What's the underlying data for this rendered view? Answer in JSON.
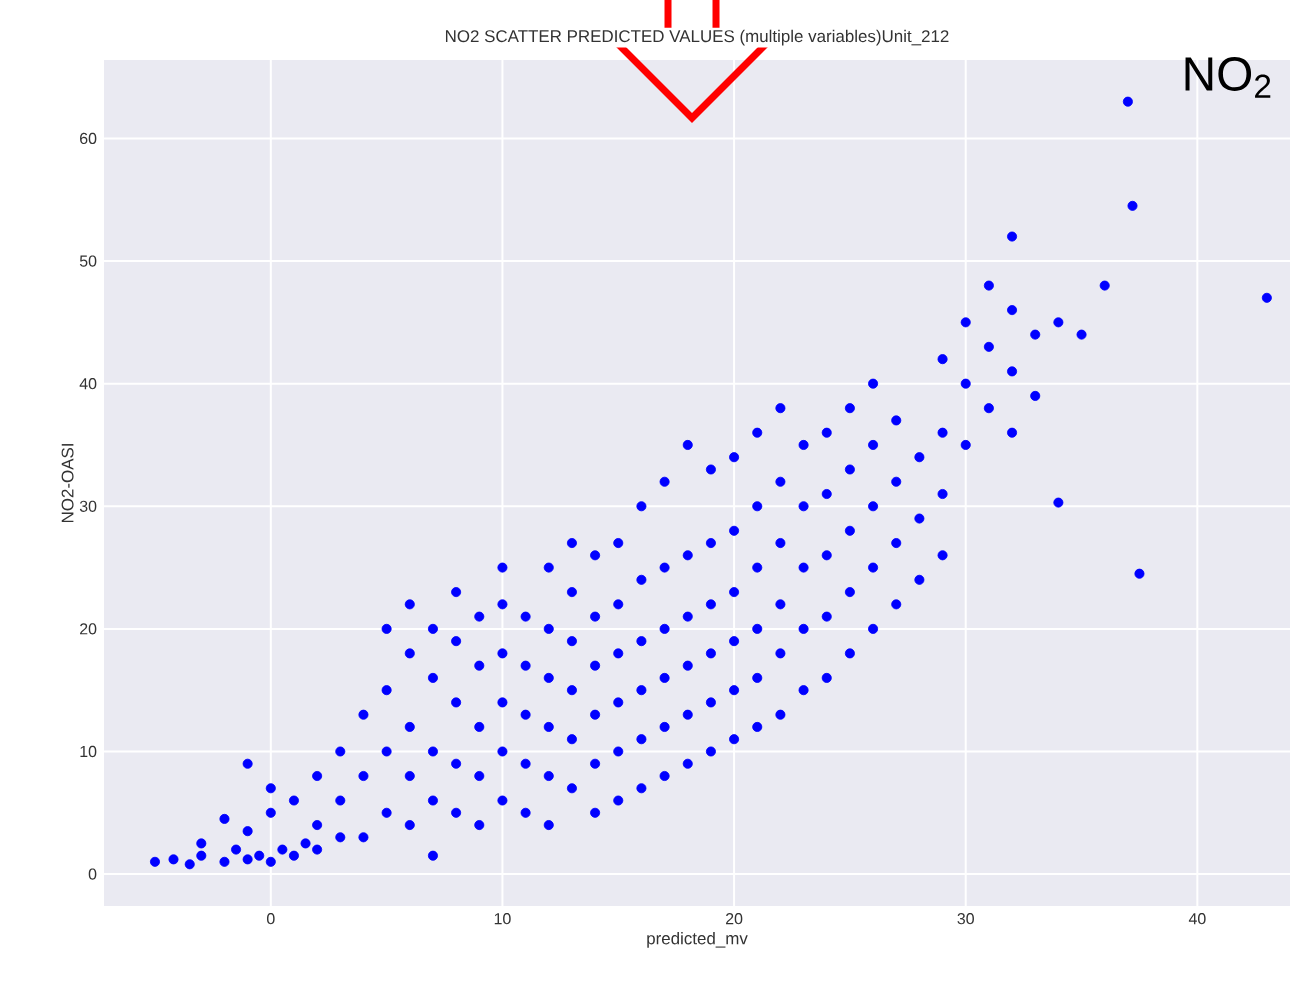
{
  "chart_data": {
    "type": "scatter",
    "title": "NO2 SCATTER PREDICTED VALUES (multiple variables)Unit_212",
    "xlabel": "predicted_mv",
    "ylabel": "NO2-OASI",
    "annotations": [
      "NO$_{2}$"
    ],
    "color": "#0000ff",
    "marker": "circle",
    "grid": true,
    "xlim": [
      -7.2,
      44
    ],
    "ylim": [
      -2.6,
      66.4
    ],
    "xticks": [
      0,
      10,
      20,
      30,
      40
    ],
    "yticks": [
      0,
      10,
      20,
      30,
      40,
      50,
      60
    ],
    "x": [
      -5,
      -4.2,
      -3.5,
      -3,
      -2,
      -1.5,
      -1,
      -0.5,
      0,
      0.5,
      1,
      1.5,
      2,
      3,
      -2,
      -1,
      -3,
      -1,
      0,
      0,
      1,
      2,
      2,
      3,
      3,
      4,
      4,
      4,
      5,
      5,
      5,
      5,
      6,
      6,
      6,
      6,
      6,
      7,
      7,
      7,
      7,
      7,
      8,
      8,
      8,
      8,
      8,
      9,
      9,
      9,
      9,
      9,
      10,
      10,
      10,
      10,
      10,
      10,
      11,
      11,
      11,
      11,
      11,
      12,
      12,
      12,
      12,
      12,
      12,
      13,
      13,
      13,
      13,
      13,
      13,
      14,
      14,
      14,
      14,
      14,
      14,
      15,
      15,
      15,
      15,
      15,
      15,
      16,
      16,
      16,
      16,
      16,
      16,
      17,
      17,
      17,
      17,
      17,
      17,
      18,
      18,
      18,
      18,
      18,
      18,
      19,
      19,
      19,
      19,
      19,
      19,
      20,
      20,
      20,
      20,
      20,
      20,
      21,
      21,
      21,
      21,
      21,
      21,
      22,
      22,
      22,
      22,
      22,
      22,
      23,
      23,
      23,
      23,
      23,
      24,
      24,
      24,
      24,
      24,
      25,
      25,
      25,
      25,
      25,
      26,
      26,
      26,
      26,
      26,
      27,
      27,
      27,
      27,
      28,
      28,
      28,
      29,
      29,
      29,
      29,
      30,
      30,
      30,
      31,
      31,
      31,
      32,
      32,
      32,
      32,
      33,
      33,
      34,
      34,
      35,
      36,
      37,
      37.2,
      37.5,
      43
    ],
    "values": [
      1,
      1.2,
      0.8,
      1.5,
      1,
      2,
      1.2,
      1.5,
      1,
      2,
      1.5,
      2.5,
      2,
      3,
      4.5,
      3.5,
      2.5,
      9,
      7,
      5,
      6,
      4,
      8,
      6,
      10,
      3,
      8,
      13,
      5,
      10,
      15,
      20,
      4,
      8,
      12,
      18,
      22,
      1.5,
      6,
      10,
      16,
      20,
      5,
      9,
      14,
      19,
      23,
      4,
      8,
      12,
      17,
      21,
      6,
      10,
      14,
      18,
      22,
      25,
      5,
      9,
      13,
      17,
      21,
      4,
      8,
      12,
      16,
      20,
      25,
      7,
      11,
      15,
      19,
      23,
      27,
      5,
      9,
      13,
      17,
      21,
      26,
      6,
      10,
      14,
      18,
      22,
      27,
      7,
      11,
      15,
      19,
      24,
      30,
      8,
      12,
      16,
      20,
      25,
      32,
      9,
      13,
      17,
      21,
      26,
      35,
      10,
      14,
      18,
      22,
      27,
      33,
      11,
      15,
      19,
      23,
      28,
      34,
      12,
      16,
      20,
      25,
      30,
      36,
      13,
      18,
      22,
      27,
      32,
      38,
      15,
      20,
      25,
      30,
      35,
      16,
      21,
      26,
      31,
      36,
      18,
      23,
      28,
      33,
      38,
      20,
      25,
      30,
      35,
      40,
      22,
      27,
      32,
      37,
      24,
      29,
      34,
      26,
      31,
      36,
      42,
      35,
      40,
      45,
      38,
      43,
      48,
      36,
      41,
      46,
      52,
      39,
      44,
      30.3,
      45,
      44,
      48,
      63,
      54.5,
      24.5,
      47
    ]
  }
}
